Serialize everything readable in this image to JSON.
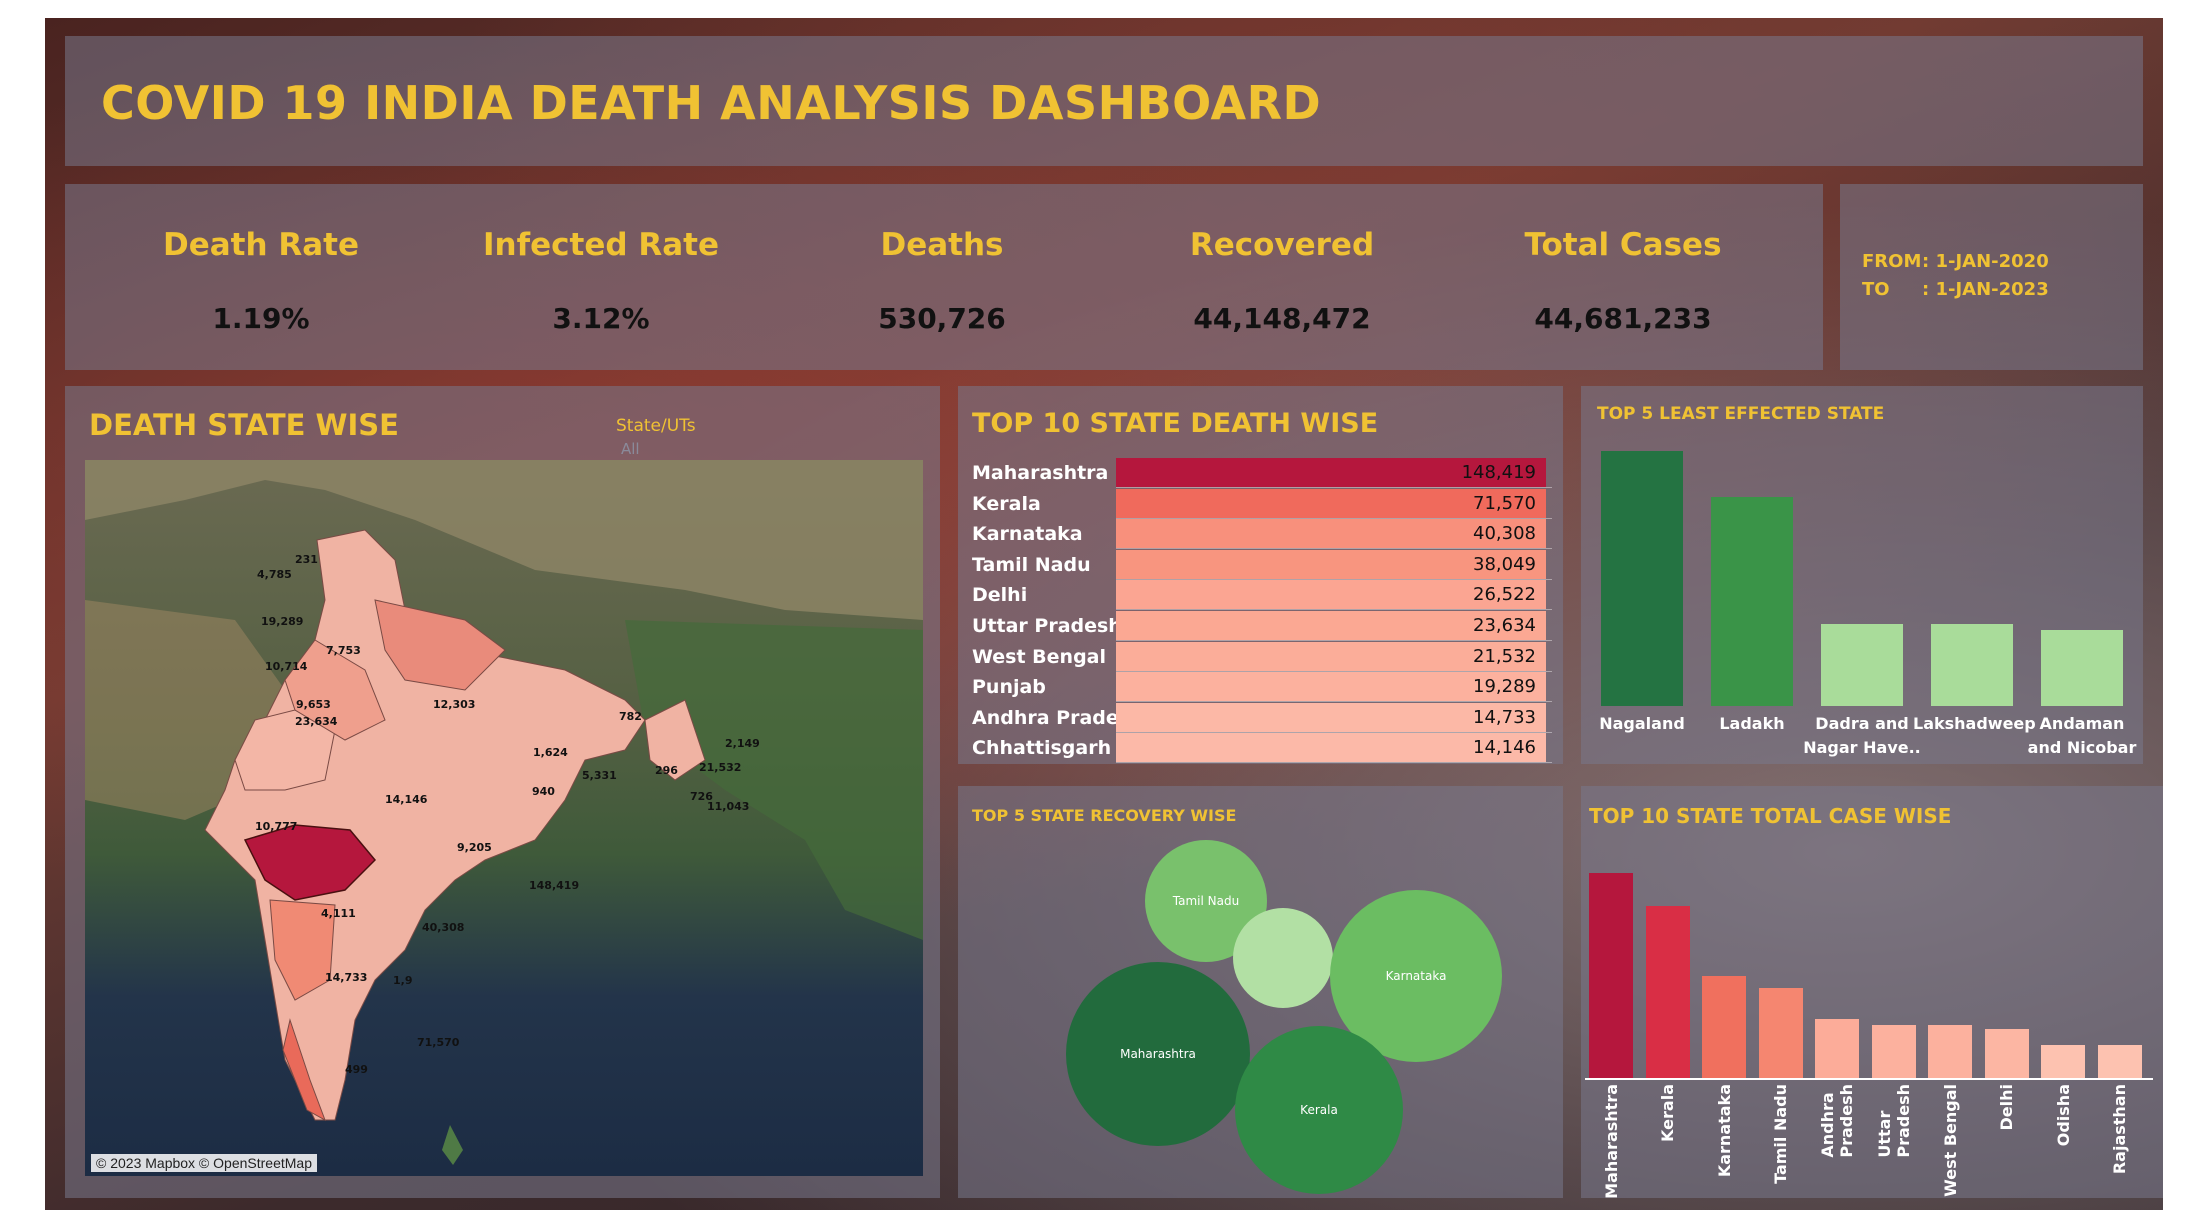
{
  "title": "COVID 19 INDIA DEATH ANALYSIS DASHBOARD",
  "kpis": [
    {
      "label": "Death Rate",
      "value": "1.19%"
    },
    {
      "label": "Infected Rate",
      "value": "3.12%"
    },
    {
      "label": "Deaths",
      "value": "530,726"
    },
    {
      "label": "Recovered",
      "value": "44,148,472"
    },
    {
      "label": "Total Cases",
      "value": "44,681,233"
    }
  ],
  "date_range": {
    "from_label": "FROM",
    "from_value": ": 1-JAN-2020",
    "to_label": "TO",
    "to_value": ": 1-JAN-2023"
  },
  "map_section": {
    "title": "DEATH STATE WISE",
    "filter_label": "State/UTs",
    "filter_value": "All",
    "attribution": "© 2023 Mapbox © OpenStreetMap",
    "labels": [
      "4,785",
      "231",
      "19,289",
      "7,753",
      "10,714",
      "9,653",
      "23,634",
      "12,303",
      "1,624",
      "296",
      "782",
      "2,149",
      "21,532",
      "5,331",
      "940",
      "726",
      "11,043",
      "10,777",
      "14,146",
      "9,205",
      "148,419",
      "4,111",
      "40,308",
      "14,733",
      "1,9",
      "71,570",
      "499"
    ]
  },
  "top10_deaths": {
    "title": "TOP 10 STATE DEATH WISE",
    "max": 148419,
    "rows": [
      {
        "state": "Maharashtra",
        "value": 148419,
        "display": "148,419",
        "color": "#b5173d"
      },
      {
        "state": "Kerala",
        "value": 71570,
        "display": "71,570",
        "color": "#f06a5c"
      },
      {
        "state": "Karnataka",
        "value": 40308,
        "display": "40,308",
        "color": "#f8907c"
      },
      {
        "state": "Tamil Nadu",
        "value": 38049,
        "display": "38,049",
        "color": "#f8957f"
      },
      {
        "state": "Delhi",
        "value": 26522,
        "display": "26,522",
        "color": "#fba592"
      },
      {
        "state": "Uttar Pradesh",
        "value": 23634,
        "display": "23,634",
        "color": "#fba893"
      },
      {
        "state": "West Bengal",
        "value": 21532,
        "display": "21,532",
        "color": "#fbad99"
      },
      {
        "state": "Punjab",
        "value": 19289,
        "display": "19,289",
        "color": "#fcb19e"
      },
      {
        "state": "Andhra Prade..",
        "value": 14733,
        "display": "14,733",
        "color": "#fcb8a6"
      },
      {
        "state": "Chhattisgarh",
        "value": 14146,
        "display": "14,146",
        "color": "#fcb9a8"
      }
    ]
  },
  "least_effected": {
    "title": "TOP 5 LEAST EFFECTED STATE",
    "bars": [
      {
        "label": "Nagaland",
        "rel": 1.0,
        "color": "#247342"
      },
      {
        "label": "Ladakh",
        "rel": 0.82,
        "color": "#3a9448"
      },
      {
        "label": "Dadra and Nagar Have..",
        "rel": 0.32,
        "color": "#a9dc9a"
      },
      {
        "label": "Lakshadweep",
        "rel": 0.32,
        "color": "#a9dc9a"
      },
      {
        "label": "Andaman and Nicobar",
        "rel": 0.3,
        "color": "#a9dc9a"
      }
    ]
  },
  "recovery": {
    "title": "TOP 5 STATE RECOVERY WISE",
    "bubbles": [
      {
        "label": "Tamil Nadu",
        "color": "#79c16c"
      },
      {
        "label": "",
        "color": "#b2e0a4"
      },
      {
        "label": "Karnataka",
        "color": "#6bbd62"
      },
      {
        "label": "Maharashtra",
        "color": "#226b3d"
      },
      {
        "label": "Kerala",
        "color": "#2f8a46"
      }
    ]
  },
  "total_cases": {
    "title": "TOP 10 STATE TOTAL CASE WISE",
    "bars": [
      {
        "label": "Maharashtra",
        "rel": 1.0,
        "color": "#b5173d"
      },
      {
        "label": "Kerala",
        "rel": 0.84,
        "color": "#d92e45"
      },
      {
        "label": "Karnataka",
        "rel": 0.5,
        "color": "#f0705e"
      },
      {
        "label": "Tamil Nadu",
        "rel": 0.44,
        "color": "#f58670"
      },
      {
        "label": "Andhra\nPradesh",
        "rel": 0.29,
        "color": "#fcac99"
      },
      {
        "label": "Uttar\nPradesh",
        "rel": 0.26,
        "color": "#fcb19e"
      },
      {
        "label": "West Bengal",
        "rel": 0.26,
        "color": "#fcb19e"
      },
      {
        "label": "Delhi",
        "rel": 0.24,
        "color": "#fcb6a3"
      },
      {
        "label": "Odisha",
        "rel": 0.16,
        "color": "#fdc2b0"
      },
      {
        "label": "Rajasthan",
        "rel": 0.16,
        "color": "#fdc2b0"
      }
    ]
  }
}
